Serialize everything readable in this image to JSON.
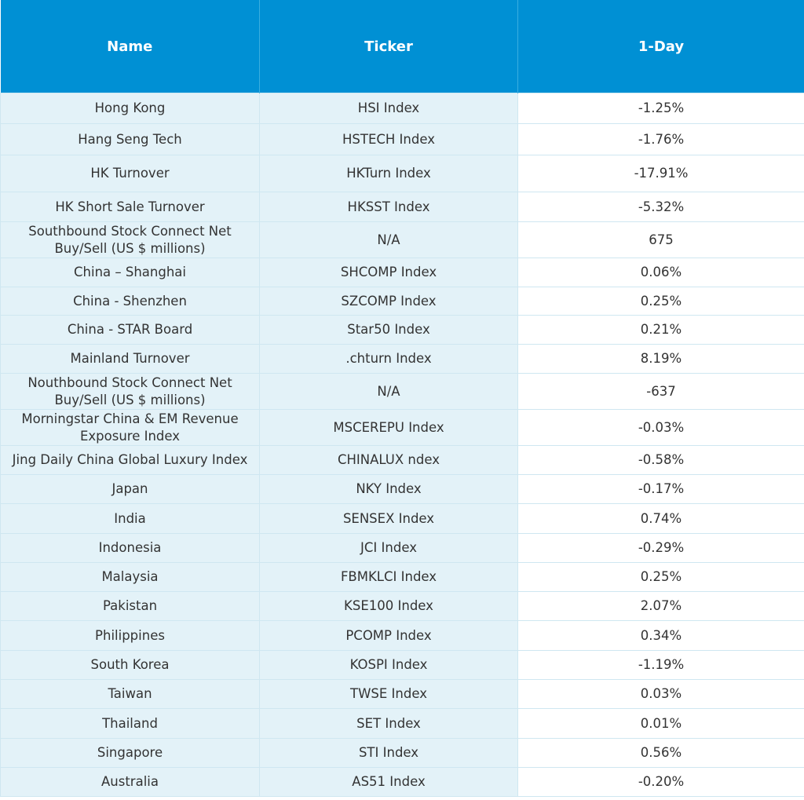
{
  "table": {
    "headers": [
      "Name",
      "Ticker",
      "1-Day"
    ],
    "rows": [
      [
        "Hong Kong",
        "HSI Index",
        "-1.25%"
      ],
      [
        "Hang Seng Tech",
        "HSTECH Index",
        "-1.76%"
      ],
      [
        "HK Turnover",
        "HKTurn Index",
        "-17.91%"
      ],
      [
        "HK Short Sale Turnover",
        "HKSST Index",
        "-5.32%"
      ],
      [
        "Southbound Stock Connect Net\nBuy/Sell (US $ millions)",
        "N/A",
        "675"
      ],
      [
        "China – Shanghai",
        "SHCOMP Index",
        "0.06%"
      ],
      [
        "China - Shenzhen",
        "SZCOMP Index",
        "0.25%"
      ],
      [
        "China - STAR Board",
        "Star50 Index",
        "0.21%"
      ],
      [
        "Mainland Turnover",
        ".chturn Index",
        "8.19%"
      ],
      [
        "Nouthbound Stock Connect Net\nBuy/Sell (US $ millions)",
        "N/A",
        "-637"
      ],
      [
        "Morningstar China & EM Revenue\nExposure Index",
        "MSCEREPU Index",
        "-0.03%"
      ],
      [
        "Jing Daily China Global Luxury Index",
        "CHINALUX ndex",
        "-0.58%"
      ],
      [
        "Japan",
        "NKY Index",
        "-0.17%"
      ],
      [
        "India",
        "SENSEX Index",
        "0.74%"
      ],
      [
        "Indonesia",
        "JCI Index",
        "-0.29%"
      ],
      [
        "Malaysia",
        "FBMKLCI Index",
        "0.25%"
      ],
      [
        "Pakistan",
        "KSE100 Index",
        "2.07%"
      ],
      [
        "Philippines",
        "PCOMP Index",
        "0.34%"
      ],
      [
        "South Korea",
        "KOSPI Index",
        "-1.19%"
      ],
      [
        "Taiwan",
        "TWSE Index",
        "0.03%"
      ],
      [
        "Thailand",
        "SET Index",
        "0.01%"
      ],
      [
        "Singapore",
        "STI Index",
        "0.56%"
      ],
      [
        "Australia",
        "AS51 Index",
        "-0.20%"
      ]
    ]
  }
}
